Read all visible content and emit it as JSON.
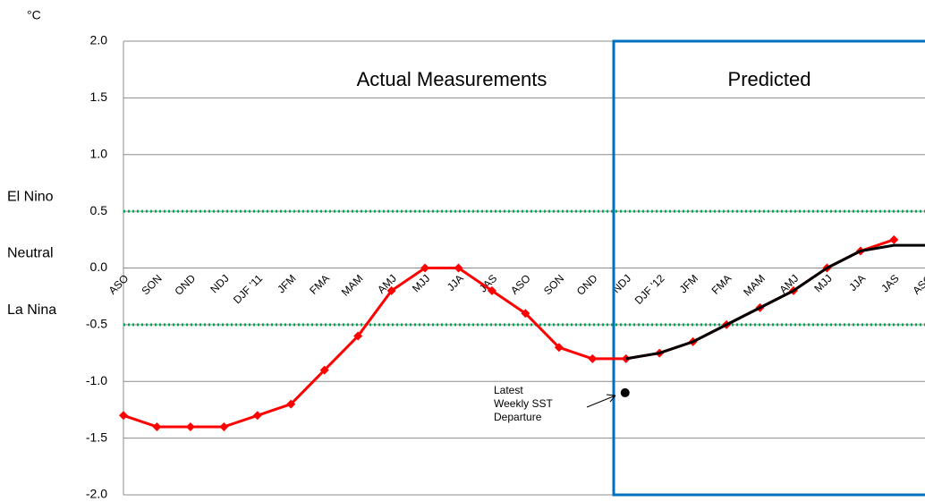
{
  "chart_data": {
    "type": "line",
    "unit_label": "°C",
    "categories": [
      "ASO",
      "SON",
      "OND",
      "NDJ",
      "DJF '11",
      "JFM",
      "FMA",
      "MAM",
      "AMJ",
      "MJJ",
      "JJA",
      "JAS",
      "ASO",
      "SON",
      "OND",
      "NDJ",
      "DJF '12",
      "JFM",
      "FMA",
      "MAM",
      "AMJ",
      "MJJ",
      "JJA",
      "JAS",
      "ASO"
    ],
    "series": [
      {
        "name": "Actual",
        "color": "#ff0000",
        "marker": "diamond",
        "values": [
          -1.3,
          -1.4,
          -1.4,
          -1.4,
          -1.3,
          -1.2,
          -0.9,
          -0.6,
          -0.2,
          0,
          0,
          -0.2,
          -0.4,
          -0.7,
          -0.8,
          -0.8,
          -0.75,
          -0.65,
          -0.5,
          -0.35,
          -0.2,
          0,
          0.15,
          0.25,
          null
        ]
      },
      {
        "name": "Predicted",
        "color": "#000000",
        "marker": "none",
        "values": [
          null,
          null,
          null,
          null,
          null,
          null,
          null,
          null,
          null,
          null,
          null,
          null,
          null,
          null,
          null,
          -0.8,
          -0.75,
          -0.65,
          -0.5,
          -0.35,
          -0.2,
          0,
          0.15,
          0.2,
          0.2
        ]
      }
    ],
    "ylim": [
      -2,
      2
    ],
    "yticks": [
      {
        "value": -2,
        "label": "-2.0"
      },
      {
        "value": -1.5,
        "label": "-1.5"
      },
      {
        "value": -1,
        "label": "-1.0"
      },
      {
        "value": -0.5,
        "label": "-0.5"
      },
      {
        "value": 0,
        "label": "0.0"
      },
      {
        "value": 0.5,
        "label": "0.5"
      },
      {
        "value": 1,
        "label": "1.0"
      },
      {
        "value": 1.5,
        "label": "1.5"
      },
      {
        "value": 2,
        "label": "2.0"
      }
    ],
    "grid": true,
    "reference_lines": {
      "color": "#00a651",
      "values": [
        0.5,
        -0.5
      ]
    },
    "region_labels": [
      {
        "label": "El Nino",
        "value": 0.5
      },
      {
        "label": "Neutral",
        "value": 0
      },
      {
        "label": "La Nina",
        "value": -0.5
      }
    ],
    "section_labels": [
      "Actual Measurements",
      "Predicted"
    ],
    "annotation": {
      "lines": [
        "Latest",
        "Weekly SST",
        "Departure"
      ],
      "value": -1.1,
      "color": "#000000"
    },
    "box_color": "#0070c0"
  }
}
